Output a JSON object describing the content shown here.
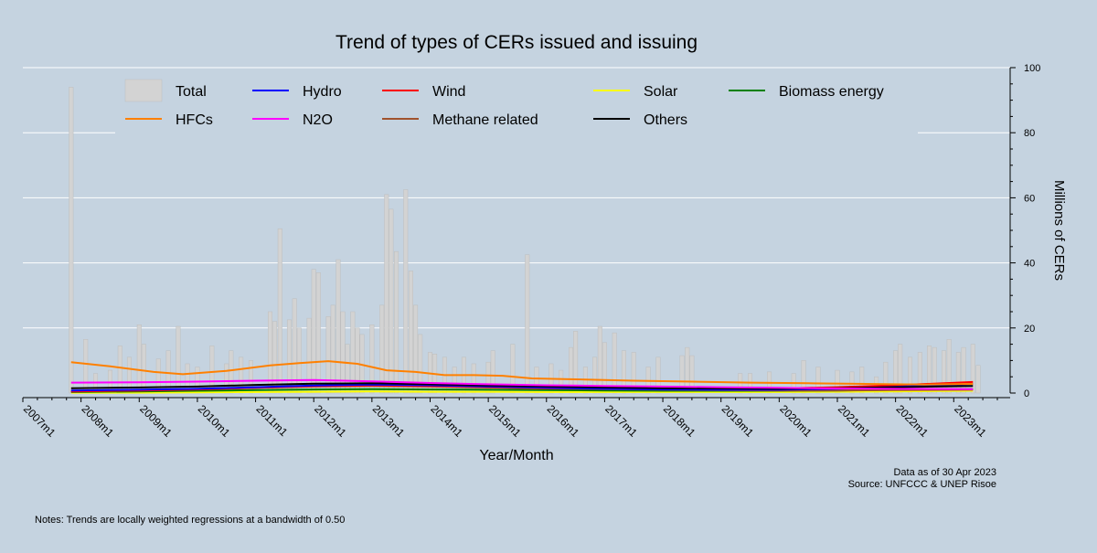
{
  "chart_data": {
    "type": "bar+line",
    "title": "Trend of types of CERs issued and issuing",
    "xlabel": "Year/Month",
    "ylabel": "Millions of CERs",
    "ylim": [
      0,
      100
    ],
    "y_ticks": [
      "0",
      "20",
      "40",
      "60",
      "80",
      "100"
    ],
    "y_axis_side": "right",
    "grid": "horizontal",
    "x_tick_labels": [
      "2007m1",
      "2008m1",
      "2009m1",
      "2010m1",
      "2011m1",
      "2012m1",
      "2013m1",
      "2014m1",
      "2015m1",
      "2016m1",
      "2017m1",
      "2018m1",
      "2019m1",
      "2020m1",
      "2021m1",
      "2022m1",
      "2023m1"
    ],
    "legend_position": "top",
    "legend": [
      {
        "label": "Total",
        "color": "#d3d3d3",
        "kind": "bar"
      },
      {
        "label": "Hydro",
        "color": "#0000ff",
        "kind": "line"
      },
      {
        "label": "Wind",
        "color": "#ff0000",
        "kind": "line"
      },
      {
        "label": "Solar",
        "color": "#ffff00",
        "kind": "line"
      },
      {
        "label": "Biomass energy",
        "color": "#008000",
        "kind": "line"
      },
      {
        "label": "HFCs",
        "color": "#ff8000",
        "kind": "line"
      },
      {
        "label": "N2O",
        "color": "#ff00ff",
        "kind": "line"
      },
      {
        "label": "Methane related",
        "color": "#a0522d",
        "kind": "line"
      },
      {
        "label": "Others",
        "color": "#000000",
        "kind": "line"
      }
    ],
    "bars_name": "Total",
    "bars": [
      {
        "x": 2007.83,
        "y": 94
      },
      {
        "x": 2008.08,
        "y": 16.5
      },
      {
        "x": 2008.25,
        "y": 6
      },
      {
        "x": 2008.5,
        "y": 7
      },
      {
        "x": 2008.67,
        "y": 14.5
      },
      {
        "x": 2008.83,
        "y": 11
      },
      {
        "x": 2009.0,
        "y": 21
      },
      {
        "x": 2009.08,
        "y": 15
      },
      {
        "x": 2009.33,
        "y": 10.5
      },
      {
        "x": 2009.5,
        "y": 13
      },
      {
        "x": 2009.67,
        "y": 20.5
      },
      {
        "x": 2009.83,
        "y": 9
      },
      {
        "x": 2010.0,
        "y": 8
      },
      {
        "x": 2010.25,
        "y": 14.5
      },
      {
        "x": 2010.5,
        "y": 9
      },
      {
        "x": 2010.58,
        "y": 13
      },
      {
        "x": 2010.75,
        "y": 11
      },
      {
        "x": 2010.92,
        "y": 10
      },
      {
        "x": 2011.25,
        "y": 25
      },
      {
        "x": 2011.33,
        "y": 22
      },
      {
        "x": 2011.42,
        "y": 50.5
      },
      {
        "x": 2011.58,
        "y": 22.5
      },
      {
        "x": 2011.67,
        "y": 29
      },
      {
        "x": 2011.75,
        "y": 20
      },
      {
        "x": 2011.92,
        "y": 23
      },
      {
        "x": 2012.0,
        "y": 38
      },
      {
        "x": 2012.08,
        "y": 37
      },
      {
        "x": 2012.25,
        "y": 23.5
      },
      {
        "x": 2012.33,
        "y": 27
      },
      {
        "x": 2012.42,
        "y": 41
      },
      {
        "x": 2012.5,
        "y": 25
      },
      {
        "x": 2012.58,
        "y": 15
      },
      {
        "x": 2012.67,
        "y": 25
      },
      {
        "x": 2012.75,
        "y": 20
      },
      {
        "x": 2012.83,
        "y": 18
      },
      {
        "x": 2013.0,
        "y": 21
      },
      {
        "x": 2013.17,
        "y": 27
      },
      {
        "x": 2013.25,
        "y": 61
      },
      {
        "x": 2013.33,
        "y": 56.5
      },
      {
        "x": 2013.42,
        "y": 43.5
      },
      {
        "x": 2013.58,
        "y": 62.5
      },
      {
        "x": 2013.67,
        "y": 37.5
      },
      {
        "x": 2013.75,
        "y": 27
      },
      {
        "x": 2013.83,
        "y": 18
      },
      {
        "x": 2014.0,
        "y": 12.5
      },
      {
        "x": 2014.08,
        "y": 12
      },
      {
        "x": 2014.25,
        "y": 11
      },
      {
        "x": 2014.42,
        "y": 8
      },
      {
        "x": 2014.58,
        "y": 11
      },
      {
        "x": 2014.75,
        "y": 9
      },
      {
        "x": 2015.0,
        "y": 9.5
      },
      {
        "x": 2015.08,
        "y": 13
      },
      {
        "x": 2015.42,
        "y": 15
      },
      {
        "x": 2015.67,
        "y": 42.5
      },
      {
        "x": 2015.83,
        "y": 8
      },
      {
        "x": 2016.08,
        "y": 9
      },
      {
        "x": 2016.25,
        "y": 7
      },
      {
        "x": 2016.42,
        "y": 14
      },
      {
        "x": 2016.5,
        "y": 19
      },
      {
        "x": 2016.67,
        "y": 8
      },
      {
        "x": 2016.83,
        "y": 11
      },
      {
        "x": 2016.92,
        "y": 20.5
      },
      {
        "x": 2017.0,
        "y": 15.5
      },
      {
        "x": 2017.17,
        "y": 18.5
      },
      {
        "x": 2017.33,
        "y": 13
      },
      {
        "x": 2017.5,
        "y": 12.5
      },
      {
        "x": 2017.75,
        "y": 8
      },
      {
        "x": 2017.92,
        "y": 11
      },
      {
        "x": 2018.33,
        "y": 11.5
      },
      {
        "x": 2018.42,
        "y": 14
      },
      {
        "x": 2018.5,
        "y": 11.5
      },
      {
        "x": 2019.33,
        "y": 6
      },
      {
        "x": 2019.5,
        "y": 6
      },
      {
        "x": 2019.83,
        "y": 6.5
      },
      {
        "x": 2020.25,
        "y": 6
      },
      {
        "x": 2020.42,
        "y": 10
      },
      {
        "x": 2020.67,
        "y": 8
      },
      {
        "x": 2021.0,
        "y": 7
      },
      {
        "x": 2021.25,
        "y": 6.5
      },
      {
        "x": 2021.42,
        "y": 8
      },
      {
        "x": 2021.67,
        "y": 5
      },
      {
        "x": 2021.83,
        "y": 9.5
      },
      {
        "x": 2022.0,
        "y": 13
      },
      {
        "x": 2022.08,
        "y": 15
      },
      {
        "x": 2022.25,
        "y": 11
      },
      {
        "x": 2022.42,
        "y": 12.5
      },
      {
        "x": 2022.58,
        "y": 14.5
      },
      {
        "x": 2022.67,
        "y": 14
      },
      {
        "x": 2022.83,
        "y": 13
      },
      {
        "x": 2022.92,
        "y": 16.5
      },
      {
        "x": 2023.08,
        "y": 12.5
      },
      {
        "x": 2023.17,
        "y": 14
      },
      {
        "x": 2023.33,
        "y": 15
      },
      {
        "x": 2023.42,
        "y": 8.5
      }
    ],
    "series": [
      {
        "name": "HFCs",
        "color": "#ff8000",
        "x": [
          2007.83,
          2008.5,
          2009.25,
          2009.75,
          2010.5,
          2011.25,
          2011.75,
          2012.25,
          2012.75,
          2013.25,
          2013.75,
          2014.25,
          2014.75,
          2015.25,
          2015.75,
          2016.5,
          2017.5,
          2018.5,
          2019.5,
          2020.5,
          2021.5,
          2022.5,
          2023.33
        ],
        "y": [
          9.5,
          8.2,
          6.5,
          5.8,
          6.8,
          8.5,
          9.2,
          9.8,
          9.0,
          7.0,
          6.5,
          5.5,
          5.5,
          5.3,
          4.5,
          4.2,
          3.8,
          3.5,
          3.2,
          3.0,
          2.8,
          2.6,
          2.8
        ]
      },
      {
        "name": "N2O",
        "color": "#ff00ff",
        "x": [
          2007.83,
          2009.0,
          2010.0,
          2011.0,
          2012.0,
          2013.0,
          2014.0,
          2015.0,
          2016.0,
          2017.0,
          2018.0,
          2019.0,
          2020.0,
          2021.0,
          2022.0,
          2023.33
        ],
        "y": [
          3.2,
          3.3,
          3.5,
          3.8,
          4.0,
          3.6,
          3.1,
          2.7,
          2.4,
          2.2,
          2.0,
          1.8,
          1.6,
          1.4,
          1.3,
          1.2
        ]
      },
      {
        "name": "Others",
        "color": "#000000",
        "x": [
          2007.83,
          2009.0,
          2010.0,
          2011.0,
          2012.0,
          2013.0,
          2014.0,
          2015.0,
          2016.0,
          2017.0,
          2018.0,
          2019.0,
          2020.0,
          2021.0,
          2022.0,
          2023.33
        ],
        "y": [
          1.5,
          1.7,
          2.0,
          2.5,
          2.9,
          3.0,
          2.7,
          2.3,
          2.0,
          1.7,
          1.5,
          1.4,
          1.3,
          1.5,
          1.8,
          2.2
        ]
      },
      {
        "name": "Hydro",
        "color": "#0000ff",
        "x": [
          2007.83,
          2009.0,
          2010.0,
          2011.0,
          2012.0,
          2013.0,
          2014.0,
          2015.0,
          2016.0,
          2017.0,
          2018.0,
          2019.0,
          2020.0,
          2021.0,
          2022.0,
          2023.33
        ],
        "y": [
          0.8,
          1.0,
          1.3,
          1.8,
          2.3,
          2.6,
          2.4,
          2.0,
          1.6,
          1.3,
          1.1,
          1.0,
          1.0,
          1.3,
          1.9,
          2.8
        ]
      },
      {
        "name": "Wind",
        "color": "#ff0000",
        "x": [
          2007.83,
          2009.0,
          2010.0,
          2011.0,
          2012.0,
          2013.0,
          2014.0,
          2015.0,
          2016.0,
          2017.0,
          2018.0,
          2019.0,
          2020.0,
          2021.0,
          2022.0,
          2023.33
        ],
        "y": [
          0.5,
          0.8,
          1.1,
          1.6,
          2.1,
          2.3,
          2.1,
          1.8,
          1.5,
          1.3,
          1.2,
          1.2,
          1.4,
          1.8,
          2.4,
          3.4
        ]
      },
      {
        "name": "Methane related",
        "color": "#a0522d",
        "x": [
          2007.83,
          2009.0,
          2010.0,
          2011.0,
          2012.0,
          2013.0,
          2014.0,
          2015.0,
          2016.0,
          2017.0,
          2018.0,
          2019.0,
          2020.0,
          2021.0,
          2022.0,
          2023.33
        ],
        "y": [
          0.5,
          0.8,
          1.2,
          1.6,
          2.0,
          2.2,
          2.0,
          1.7,
          1.4,
          1.2,
          1.0,
          0.9,
          0.8,
          0.8,
          0.9,
          1.0
        ]
      },
      {
        "name": "Biomass energy",
        "color": "#008000",
        "x": [
          2007.83,
          2009.0,
          2010.0,
          2011.0,
          2012.0,
          2013.0,
          2014.0,
          2015.0,
          2016.0,
          2017.0,
          2018.0,
          2019.0,
          2020.0,
          2021.0,
          2022.0,
          2023.33
        ],
        "y": [
          0.3,
          0.5,
          0.7,
          0.9,
          1.1,
          1.2,
          1.1,
          1.0,
          0.9,
          0.8,
          0.7,
          0.7,
          0.7,
          0.8,
          1.0,
          1.2
        ]
      },
      {
        "name": "Solar",
        "color": "#ffff00",
        "x": [
          2007.83,
          2009.0,
          2010.0,
          2011.0,
          2012.0,
          2013.0,
          2014.0,
          2015.0,
          2016.0,
          2017.0,
          2018.0,
          2019.0,
          2020.0,
          2021.0,
          2022.0,
          2023.33
        ],
        "y": [
          0.1,
          0.1,
          0.2,
          0.3,
          0.4,
          0.5,
          0.4,
          0.4,
          0.3,
          0.3,
          0.3,
          0.3,
          0.3,
          0.4,
          0.5,
          0.7
        ]
      }
    ]
  },
  "footer": {
    "data_as_of": "Data as of 30 Apr 2023",
    "source": "Source: UNFCCC & UNEP Risoe",
    "notes": "Notes: Trends are locally weighted regressions at a bandwidth of 0.50"
  }
}
